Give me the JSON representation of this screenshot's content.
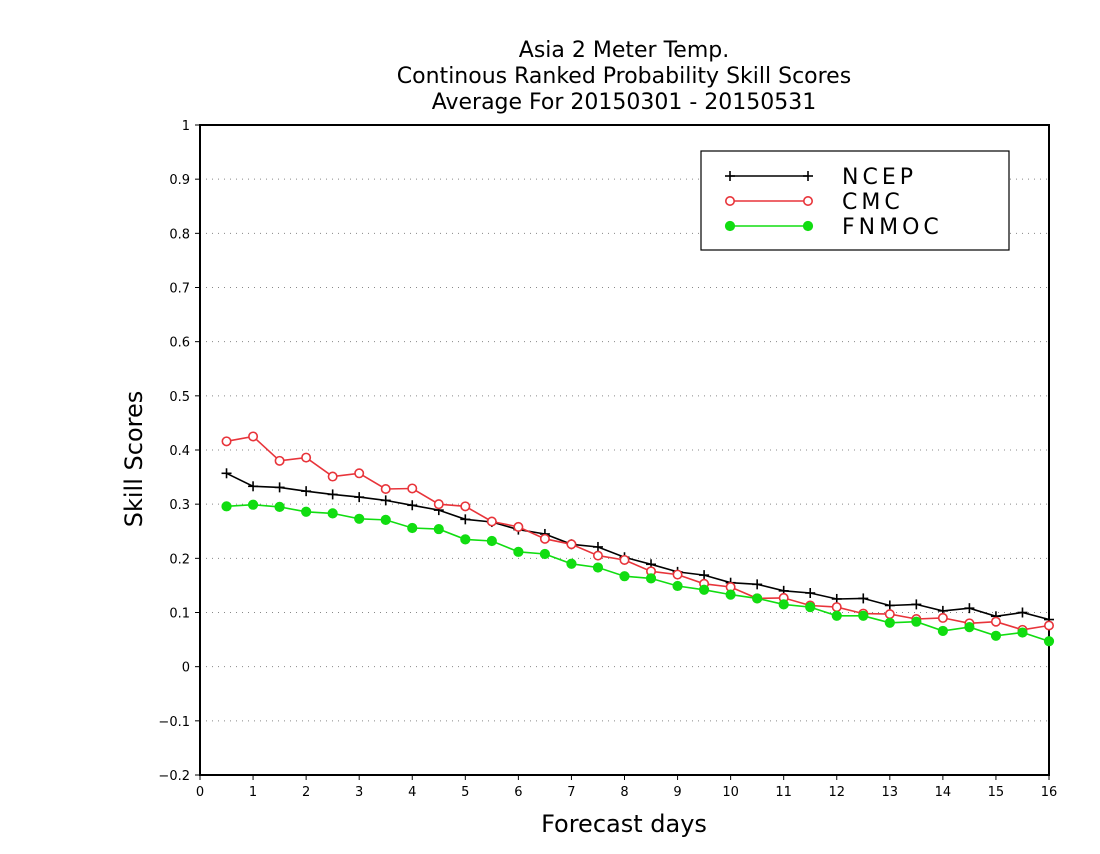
{
  "chart_data": {
    "type": "line",
    "title_lines": [
      "Asia 2 Meter Temp.",
      "Continous Ranked Probability Skill Scores",
      "Average For 20150301 - 20150531"
    ],
    "xlabel": "Forecast days",
    "ylabel": "Skill Scores",
    "xlim": [
      0,
      16
    ],
    "ylim": [
      -0.2,
      1
    ],
    "xticks": [
      "0",
      "1",
      "2",
      "3",
      "4",
      "5",
      "6",
      "7",
      "8",
      "9",
      "10",
      "11",
      "12",
      "13",
      "14",
      "15",
      "16"
    ],
    "yticks": [
      "-0.2",
      "-0.1",
      "0",
      "0.1",
      "0.2",
      "0.3",
      "0.4",
      "0.5",
      "0.6",
      "0.7",
      "0.8",
      "0.9",
      "1"
    ],
    "grid": "horizontal dotted",
    "legend_position": "top-right",
    "x": [
      0.5,
      1,
      1.5,
      2,
      2.5,
      3,
      3.5,
      4,
      4.5,
      5,
      5.5,
      6,
      6.5,
      7,
      7.5,
      8,
      8.5,
      9,
      9.5,
      10,
      10.5,
      11,
      11.5,
      12,
      12.5,
      13,
      13.5,
      14,
      14.5,
      15,
      15.5,
      16
    ],
    "series": [
      {
        "name": "NCEP",
        "color": "#000000",
        "marker": "plus",
        "values": [
          0.357,
          0.333,
          0.331,
          0.324,
          0.318,
          0.313,
          0.307,
          0.298,
          0.289,
          0.272,
          0.267,
          0.253,
          0.245,
          0.226,
          0.221,
          0.202,
          0.189,
          0.175,
          0.169,
          0.155,
          0.152,
          0.14,
          0.136,
          0.125,
          0.126,
          0.113,
          0.115,
          0.103,
          0.108,
          0.093,
          0.1,
          0.087
        ]
      },
      {
        "name": "CMC",
        "color": "#e8343a",
        "marker": "open-circle",
        "values": [
          0.416,
          0.425,
          0.38,
          0.386,
          0.351,
          0.357,
          0.328,
          0.329,
          0.3,
          0.296,
          0.268,
          0.258,
          0.236,
          0.226,
          0.205,
          0.197,
          0.176,
          0.17,
          0.153,
          0.147,
          0.126,
          0.127,
          0.113,
          0.11,
          0.098,
          0.097,
          0.088,
          0.09,
          0.08,
          0.083,
          0.068,
          0.076
        ]
      },
      {
        "name": "FNMOC",
        "color": "#11dd11",
        "marker": "filled-circle",
        "values": [
          0.296,
          0.299,
          0.295,
          0.286,
          0.283,
          0.273,
          0.271,
          0.256,
          0.254,
          0.235,
          0.232,
          0.212,
          0.208,
          0.19,
          0.183,
          0.167,
          0.163,
          0.149,
          0.142,
          0.133,
          0.126,
          0.115,
          0.11,
          0.094,
          0.094,
          0.081,
          0.083,
          0.066,
          0.073,
          0.057,
          0.063,
          0.047
        ]
      }
    ]
  }
}
